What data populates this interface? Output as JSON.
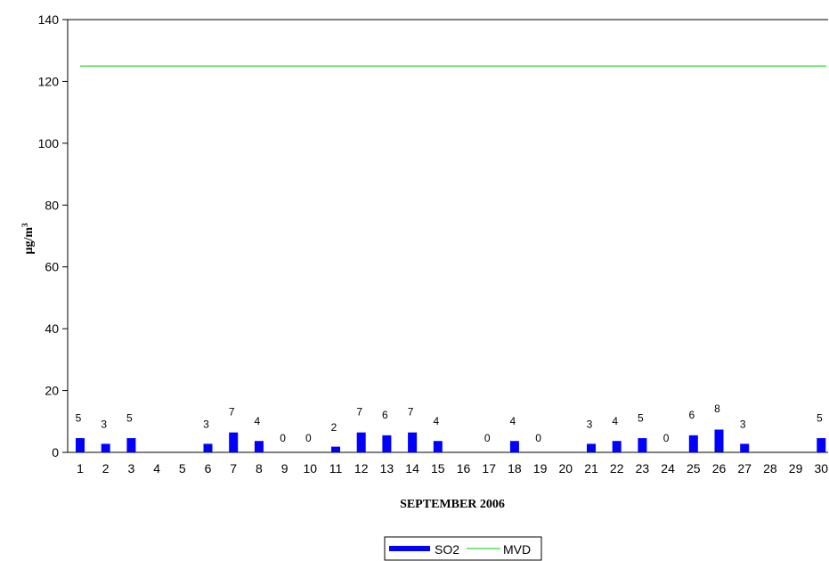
{
  "chart_data": {
    "type": "bar",
    "xlabel": "SEPTEMBER 2006",
    "ylabel": "µg/m",
    "ylabel_superscript": "3",
    "ylim": [
      0,
      140
    ],
    "yticks": [
      0,
      20,
      40,
      60,
      80,
      100,
      120,
      140
    ],
    "categories": [
      "1",
      "2",
      "3",
      "4",
      "5",
      "6",
      "7",
      "8",
      "9",
      "10",
      "11",
      "12",
      "13",
      "14",
      "15",
      "16",
      "17",
      "18",
      "19",
      "20",
      "21",
      "22",
      "23",
      "24",
      "25",
      "26",
      "27",
      "28",
      "29",
      "30"
    ],
    "series": [
      {
        "name": "SO2",
        "type": "bar",
        "color": "#0000ff",
        "values": [
          5,
          3,
          5,
          null,
          null,
          3,
          7,
          4,
          0,
          0,
          2,
          7,
          6,
          7,
          4,
          null,
          0,
          4,
          0,
          null,
          3,
          4,
          5,
          0,
          6,
          8,
          3,
          null,
          null,
          5
        ]
      },
      {
        "name": "MVD",
        "type": "line",
        "color": "#00cc00",
        "value": 125
      }
    ],
    "grid": false,
    "legend_position": "bottom-center"
  }
}
